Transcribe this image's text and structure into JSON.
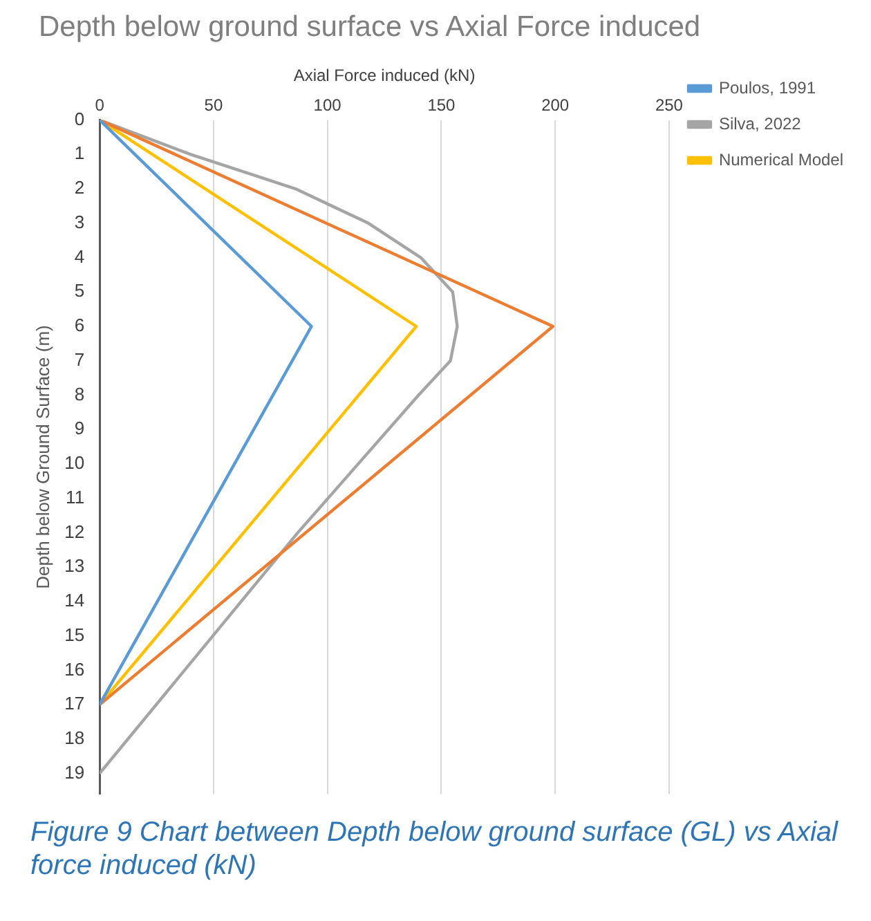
{
  "chart_data": {
    "type": "line",
    "title": "Depth below ground surface vs Axial Force induced",
    "xlabel": "Axial Force induced (kN)",
    "ylabel": "Depth below Ground Surface (m)",
    "series": [
      {
        "name": "Poulos, 1991",
        "color": "#5b9bd5",
        "x": [
          0,
          93,
          0
        ],
        "values": [
          0,
          6,
          17
        ]
      },
      {
        "color": "#ed7d31",
        "x": [
          0,
          199,
          0
        ],
        "values": [
          0,
          6,
          17
        ]
      },
      {
        "name": "Silva, 2022",
        "color": "#a5a5a5",
        "x": [
          0,
          40,
          86,
          118,
          141,
          155,
          157,
          154,
          140,
          87,
          0
        ],
        "values": [
          0,
          1,
          2,
          3,
          4,
          5,
          6,
          7,
          8,
          12,
          19
        ]
      },
      {
        "name": "Numerical Model",
        "color": "#ffc000",
        "x": [
          0,
          139,
          0
        ],
        "values": [
          0,
          6,
          17
        ]
      }
    ],
    "xlim": [
      0,
      250
    ],
    "xticks": [
      0,
      50,
      100,
      150,
      200,
      250
    ],
    "ylim": [
      19.6,
      0
    ],
    "yticks": [
      0,
      1,
      2,
      3,
      4,
      5,
      6,
      7,
      8,
      9,
      10,
      11,
      12,
      13,
      14,
      15,
      16,
      17,
      18,
      19
    ],
    "grid": "x",
    "legend": "top right",
    "marker": "none",
    "line_style": "solid",
    "annotations": [
      "Figure 9 Chart between Depth below ground surface (GL) vs Axial force induced (kN)"
    ]
  }
}
